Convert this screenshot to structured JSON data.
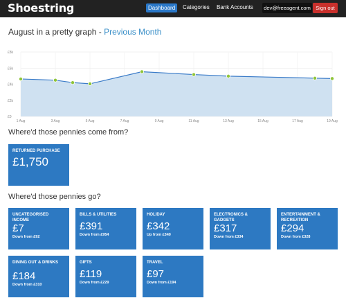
{
  "header": {
    "brand": "Shoestring",
    "nav": [
      "Dashboard",
      "Categories",
      "Bank Accounts"
    ],
    "email": "dev@freeagent.com",
    "signout": "Sign out"
  },
  "title": {
    "text": "August in a pretty graph - ",
    "link": "Previous Month"
  },
  "chart_data": {
    "type": "area",
    "y_ticks": [
      "£8k",
      "£6k",
      "£4k",
      "£2k",
      "£0"
    ],
    "x_ticks": [
      "1 Aug",
      "3 Aug",
      "5 Aug",
      "7 Aug",
      "9 Aug",
      "11 Aug",
      "13 Aug",
      "15 Aug",
      "17 Aug",
      "19 Aug"
    ],
    "ylim": [
      0,
      8000
    ],
    "xlim": [
      1,
      19
    ],
    "x": [
      1,
      3,
      4,
      5,
      8,
      11,
      13,
      18,
      19
    ],
    "y": [
      4650,
      4500,
      4200,
      4050,
      5550,
      5200,
      5000,
      4750,
      4700
    ],
    "line_color": "#3a7bc8",
    "fill_color": "#cfe1f1",
    "point_color": "#8fc43a"
  },
  "income": {
    "title": "Where'd those pennies come from?",
    "tiles": [
      {
        "label": "RETURNED PURCHASE",
        "amount": "£1,750"
      }
    ]
  },
  "spending": {
    "title": "Where'd those pennies go?",
    "tiles": [
      {
        "label": "UNCATEGORISED INCOME",
        "amount": "£7",
        "sub": "Down from £92"
      },
      {
        "label": "BILLS & UTILITIES",
        "amount": "£391",
        "sub": "Down from £954"
      },
      {
        "label": "HOLIDAY",
        "amount": "£342",
        "sub": "Up from £340"
      },
      {
        "label": "ELECTRONICS & GADGETS",
        "amount": "£317",
        "sub": "Down from £334"
      },
      {
        "label": "ENTERTAINMENT & RECREATION",
        "amount": "£294",
        "sub": "Down from £328"
      },
      {
        "label": "DINING OUT & DRINKS",
        "amount": "£184",
        "sub": "Down from £310"
      },
      {
        "label": "GIFTS",
        "amount": "£119",
        "sub": "Down from £229"
      },
      {
        "label": "TRAVEL",
        "amount": "£97",
        "sub": "Down from £194"
      }
    ]
  }
}
